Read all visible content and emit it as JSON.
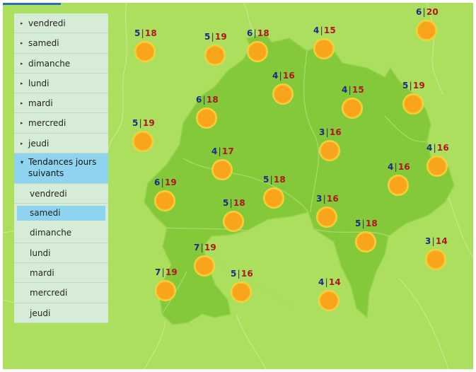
{
  "menu": {
    "days": [
      "vendredi",
      "samedi",
      "dimanche",
      "lundi",
      "mardi",
      "mercredi",
      "jeudi"
    ],
    "trends_label": "Tendances jours suivants",
    "trend_days": [
      "vendredi",
      "samedi",
      "dimanche",
      "lundi",
      "mardi",
      "mercredi",
      "jeudi"
    ],
    "active_trend_day": "samedi"
  },
  "forecast": {
    "icon": "sun-icon",
    "separator": "|",
    "points": [
      {
        "min": "5",
        "max": "18"
      },
      {
        "min": "5",
        "max": "19"
      },
      {
        "min": "6",
        "max": "18"
      },
      {
        "min": "4",
        "max": "15"
      },
      {
        "min": "6",
        "max": "20"
      },
      {
        "min": "4",
        "max": "16"
      },
      {
        "min": "4",
        "max": "15"
      },
      {
        "min": "5",
        "max": "19"
      },
      {
        "min": "6",
        "max": "18"
      },
      {
        "min": "5",
        "max": "19"
      },
      {
        "min": "3",
        "max": "16"
      },
      {
        "min": "4",
        "max": "17"
      },
      {
        "min": "4",
        "max": "16"
      },
      {
        "min": "4",
        "max": "16"
      },
      {
        "min": "6",
        "max": "19"
      },
      {
        "min": "5",
        "max": "18"
      },
      {
        "min": "5",
        "max": "18"
      },
      {
        "min": "3",
        "max": "16"
      },
      {
        "min": "5",
        "max": "18"
      },
      {
        "min": "3",
        "max": "14"
      },
      {
        "min": "7",
        "max": "19"
      },
      {
        "min": "7",
        "max": "19"
      },
      {
        "min": "5",
        "max": "16"
      },
      {
        "min": "4",
        "max": "14"
      }
    ]
  },
  "colors": {
    "background": "#addf5f",
    "region": "#84c93a",
    "min_temp": "#1a2a8a",
    "max_temp": "#b0141e",
    "menu_highlight": "#8ed4f0"
  }
}
